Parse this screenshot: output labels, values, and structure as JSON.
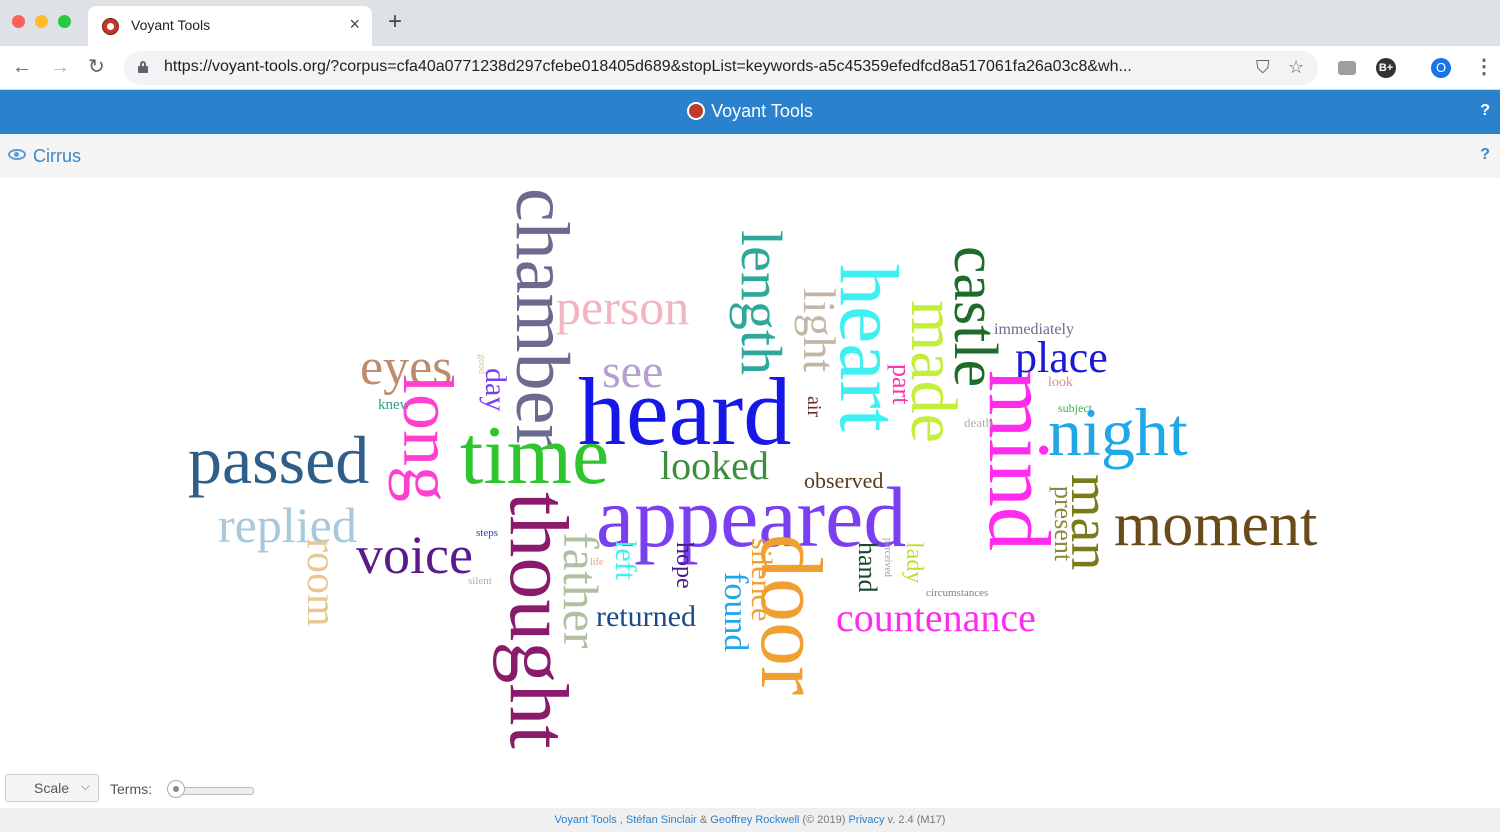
{
  "browser": {
    "tab_title": "Voyant Tools",
    "tab_close": "×",
    "new_tab": "+",
    "url": "https://voyant-tools.org/?corpus=cfa40a0771238d297cfebe018405d689&stopList=keywords-a5c45359efedfcd8a517061fa26a03c8&wh...",
    "profile_initial": "O",
    "ext_label": "B+"
  },
  "header": {
    "title": "Voyant Tools",
    "help": "?"
  },
  "panel": {
    "title": "Cirrus",
    "help": "?"
  },
  "cloud": {
    "words": [
      {
        "text": "chamber",
        "color": "#6e6a8f",
        "rotate": 90
      },
      {
        "text": "length",
        "color": "#2ea89a",
        "rotate": 90
      },
      {
        "text": "castle",
        "color": "#1f6b2a",
        "rotate": 90
      },
      {
        "text": "person",
        "color": "#f2b5c0",
        "rotate": 0
      },
      {
        "text": "light",
        "color": "#c4b6a6",
        "rotate": 90
      },
      {
        "text": "heart",
        "color": "#3ef0f0",
        "rotate": 90
      },
      {
        "text": "made",
        "color": "#c2ef3a",
        "rotate": 90
      },
      {
        "text": "immediately",
        "color": "#6e6a8f",
        "rotate": 0
      },
      {
        "text": "place",
        "color": "#1a1ad6",
        "rotate": 0
      },
      {
        "text": "eyes",
        "color": "#c08a6f",
        "rotate": 0
      },
      {
        "text": "see",
        "color": "#b79ed0",
        "rotate": 0
      },
      {
        "text": "heard",
        "color": "#1717e8",
        "rotate": 0
      },
      {
        "text": "part",
        "color": "#ff33aa",
        "rotate": 90
      },
      {
        "text": "look",
        "color": "#d09090",
        "rotate": 0
      },
      {
        "text": "mind",
        "color": "#ff2cf0",
        "rotate": 90
      },
      {
        "text": "knew",
        "color": "#2f9e8a",
        "rotate": 0
      },
      {
        "text": "long",
        "color": "#ff3fd0",
        "rotate": 90
      },
      {
        "text": "day",
        "color": "#7b3ff0",
        "rotate": 90
      },
      {
        "text": "good",
        "color": "#d8c890",
        "rotate": 90
      },
      {
        "text": "air",
        "color": "#6a2a2a",
        "rotate": 90
      },
      {
        "text": "subject",
        "color": "#3fb03f",
        "rotate": 0
      },
      {
        "text": "death",
        "color": "#b0b0b0",
        "rotate": 0
      },
      {
        "text": "night",
        "color": "#1fa8e8",
        "rotate": 0
      },
      {
        "text": "passed",
        "color": "#2d5f8a",
        "rotate": 0
      },
      {
        "text": "time",
        "color": "#2ec52e",
        "rotate": 0
      },
      {
        "text": "looked",
        "color": "#3a8f3a",
        "rotate": 0
      },
      {
        "text": "observed",
        "color": "#5a3a1a",
        "rotate": 0
      },
      {
        "text": "present",
        "color": "#8a8a3a",
        "rotate": 90
      },
      {
        "text": "man",
        "color": "#7a7a1a",
        "rotate": 90
      },
      {
        "text": "moment",
        "color": "#6b4a1a",
        "rotate": 0
      },
      {
        "text": "replied",
        "color": "#a9c8dc",
        "rotate": 0
      },
      {
        "text": "appeared",
        "color": "#7a3ff0",
        "rotate": 0
      },
      {
        "text": "thought",
        "color": "#8a1a6a",
        "rotate": 90
      },
      {
        "text": "voice",
        "color": "#5a1a8a",
        "rotate": 0
      },
      {
        "text": "steps",
        "color": "#2a3fc0",
        "rotate": 0
      },
      {
        "text": "father",
        "color": "#b0c0a0",
        "rotate": 90
      },
      {
        "text": "left",
        "color": "#3ef0f0",
        "rotate": 90
      },
      {
        "text": "hope",
        "color": "#4a1a8a",
        "rotate": 90
      },
      {
        "text": "life",
        "color": "#e0a0a0",
        "rotate": 0
      },
      {
        "text": "silence",
        "color": "#f0a030",
        "rotate": 90
      },
      {
        "text": "door",
        "color": "#f0a030",
        "rotate": 90
      },
      {
        "text": "hand",
        "color": "#1a4a2a",
        "rotate": 90
      },
      {
        "text": "perceived",
        "color": "#a0a0a0",
        "rotate": 90
      },
      {
        "text": "lady",
        "color": "#c0e030",
        "rotate": 90
      },
      {
        "text": "circumstances",
        "color": "#808080",
        "rotate": 0
      },
      {
        "text": "room",
        "color": "#e8c890",
        "rotate": 90
      },
      {
        "text": "silent",
        "color": "#a0b0d0",
        "rotate": 0
      },
      {
        "text": "returned",
        "color": "#1a4a8a",
        "rotate": 0
      },
      {
        "text": "found",
        "color": "#1fa8e8",
        "rotate": 90
      },
      {
        "text": "countenance",
        "color": "#ff2cf0",
        "rotate": 0
      }
    ]
  },
  "controls": {
    "scale_label": "Scale",
    "scale_chevron": "⌵",
    "terms_label": "Terms:"
  },
  "footer": {
    "voyant": "Voyant Tools",
    "sep1": " , ",
    "author1": "Stéfan Sinclair",
    "amp": " & ",
    "author2": "Geoffrey Rockwell",
    "copy": " (© 2019) ",
    "privacy": "Privacy",
    "version": " v. 2.4 (M17)"
  }
}
